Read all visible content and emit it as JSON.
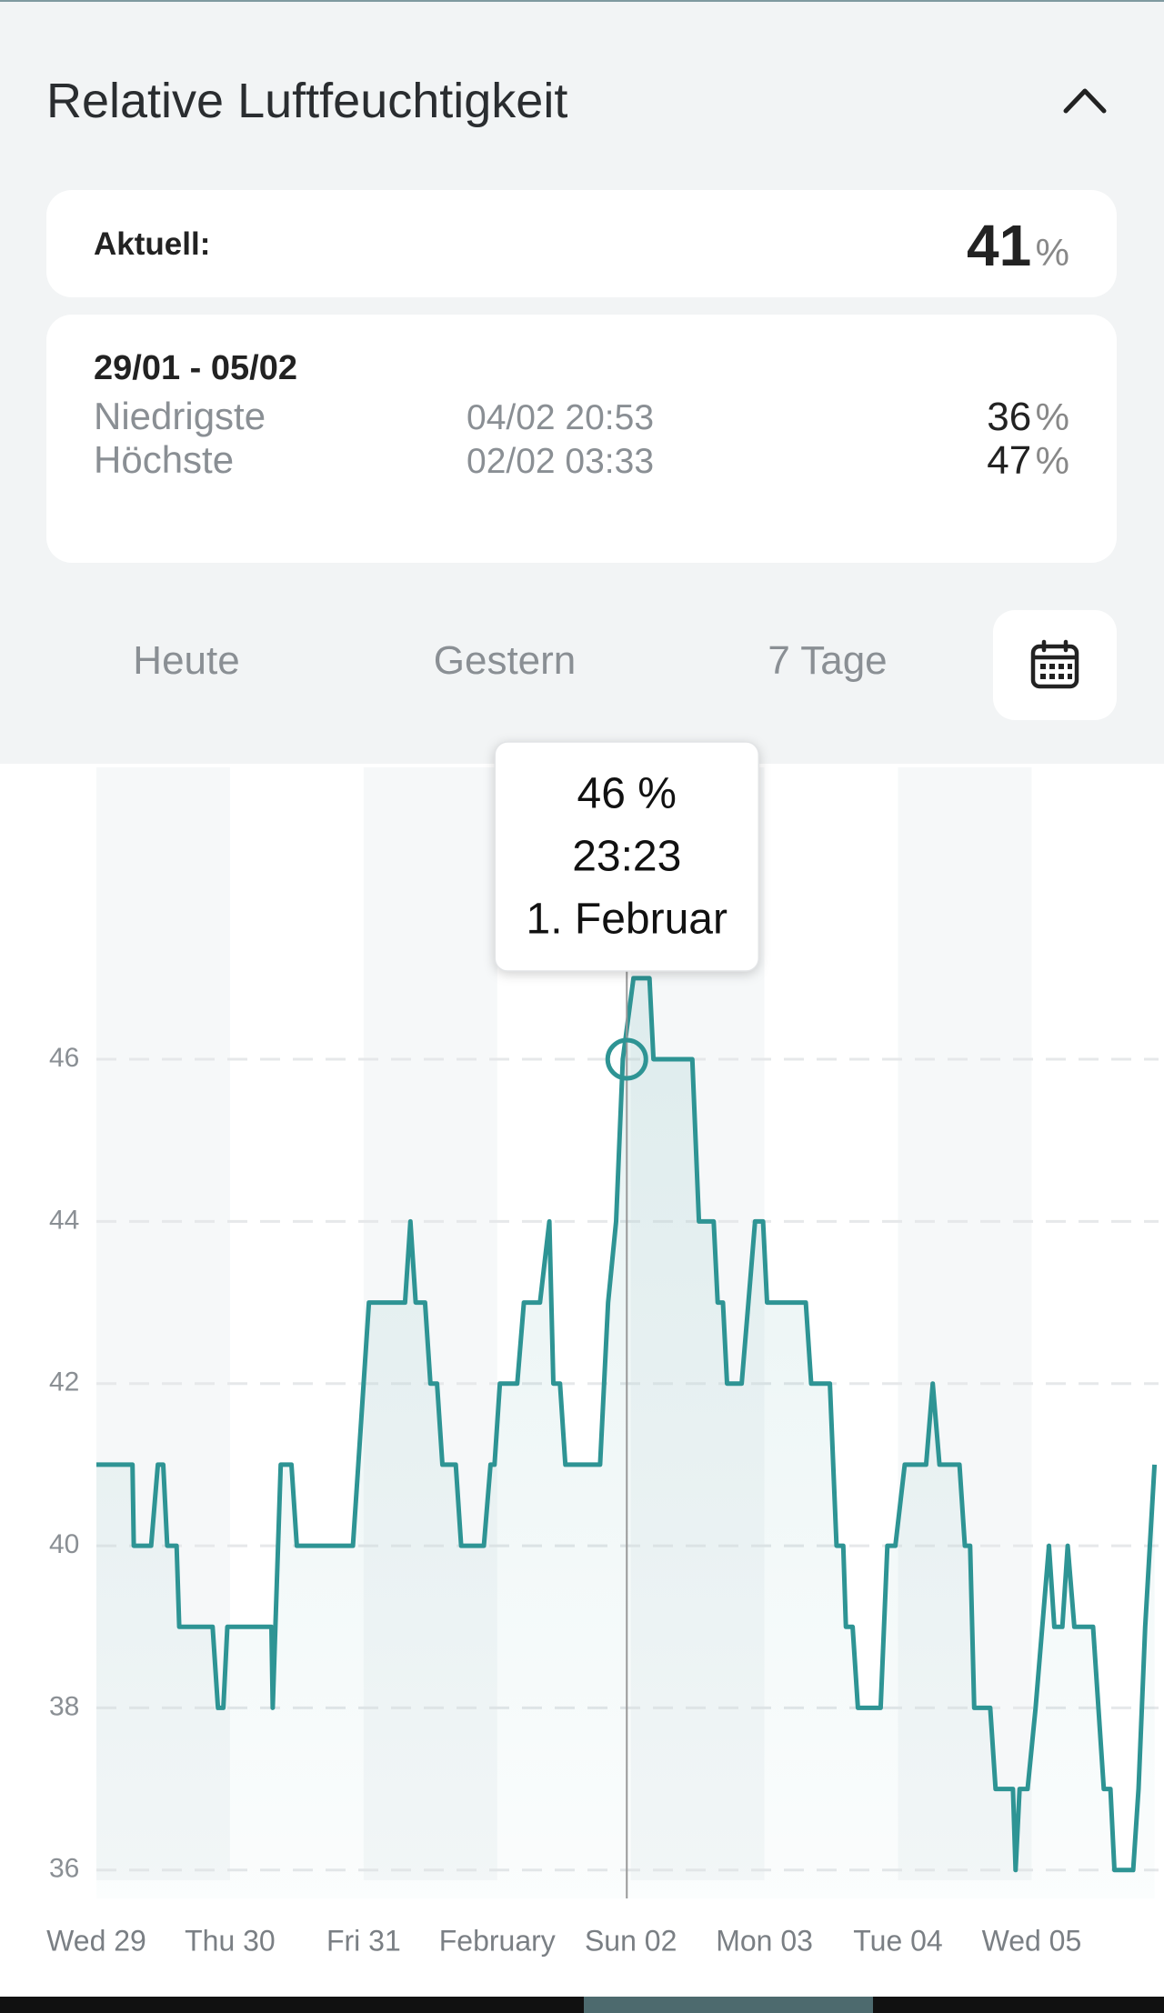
{
  "header": {
    "title": "Relative Luftfeuchtigkeit"
  },
  "current": {
    "label": "Aktuell:",
    "value": 41,
    "unit": "%"
  },
  "range": {
    "period": "29/01 - 05/02",
    "rows": [
      {
        "label": "Niedrigste",
        "time": "04/02 20:53",
        "value": 36,
        "unit": "%"
      },
      {
        "label": "Höchste",
        "time": "02/02 03:33",
        "value": 47,
        "unit": "%"
      }
    ]
  },
  "tabs": [
    "Heute",
    "Gestern",
    "7 Tage"
  ],
  "chart_data": {
    "type": "line",
    "x": [
      0,
      0.27,
      0.28,
      0.41,
      0.46,
      0.5,
      0.53,
      0.6,
      0.62,
      0.87,
      0.91,
      0.95,
      0.98,
      1.31,
      1.32,
      1.38,
      1.46,
      1.5,
      1.92,
      1.96,
      2.04,
      2.31,
      2.35,
      2.39,
      2.46,
      2.5,
      2.55,
      2.59,
      2.69,
      2.73,
      2.9,
      2.95,
      2.98,
      3.02,
      3.15,
      3.2,
      3.32,
      3.39,
      3.42,
      3.47,
      3.51,
      3.77,
      3.83,
      3.89,
      3.94,
      4.02,
      4.14,
      4.17,
      4.46,
      4.51,
      4.62,
      4.65,
      4.69,
      4.72,
      4.83,
      4.88,
      4.93,
      4.99,
      5.02,
      5.31,
      5.35,
      5.49,
      5.54,
      5.59,
      5.61,
      5.66,
      5.7,
      5.87,
      5.92,
      5.98,
      6.05,
      6.21,
      6.26,
      6.31,
      6.46,
      6.5,
      6.54,
      6.57,
      6.69,
      6.73,
      6.86,
      6.88,
      6.91,
      6.97,
      7.03,
      7.13,
      7.17,
      7.23,
      7.27,
      7.32,
      7.46,
      7.5,
      7.54,
      7.59,
      7.62,
      7.76,
      7.8,
      7.85,
      7.92
    ],
    "series": [
      {
        "color": "#2e9494",
        "values": [
          41,
          41,
          40,
          40,
          41,
          41,
          40,
          40,
          39,
          39,
          38,
          38,
          39,
          39,
          38,
          41,
          41,
          40,
          40,
          41,
          43,
          43,
          44,
          43,
          43,
          42,
          42,
          41,
          41,
          40,
          40,
          41,
          41,
          42,
          42,
          43,
          43,
          44,
          42,
          42,
          41,
          41,
          43,
          44,
          46,
          47,
          47,
          46,
          46,
          44,
          44,
          43,
          43,
          42,
          42,
          43,
          44,
          44,
          43,
          43,
          42,
          42,
          40,
          40,
          39,
          39,
          38,
          38,
          40,
          40,
          41,
          41,
          42,
          41,
          41,
          40,
          40,
          38,
          38,
          37,
          37,
          36,
          37,
          37,
          38,
          40,
          39,
          39,
          40,
          39,
          39,
          38,
          37,
          37,
          36,
          36,
          37,
          39,
          41
        ]
      }
    ],
    "xlim": [
      0,
      7.95
    ],
    "xticks": [
      {
        "value": 0,
        "label": "Wed 29"
      },
      {
        "value": 1,
        "label": "Thu 30"
      },
      {
        "value": 2,
        "label": "Fri 31"
      },
      {
        "value": 3,
        "label": "February"
      },
      {
        "value": 4,
        "label": "Sun 02"
      },
      {
        "value": 5,
        "label": "Mon 03"
      },
      {
        "value": 6,
        "label": "Tue 04"
      },
      {
        "value": 7,
        "label": "Wed 05"
      }
    ],
    "ylim": [
      35.65,
      49.6
    ],
    "yticks": [
      36,
      38,
      40,
      42,
      44,
      46
    ],
    "grid": true,
    "tooltip": {
      "x": 3.97,
      "value": 46,
      "label": "46 %",
      "time": "23:23",
      "date": "1. Februar"
    }
  }
}
